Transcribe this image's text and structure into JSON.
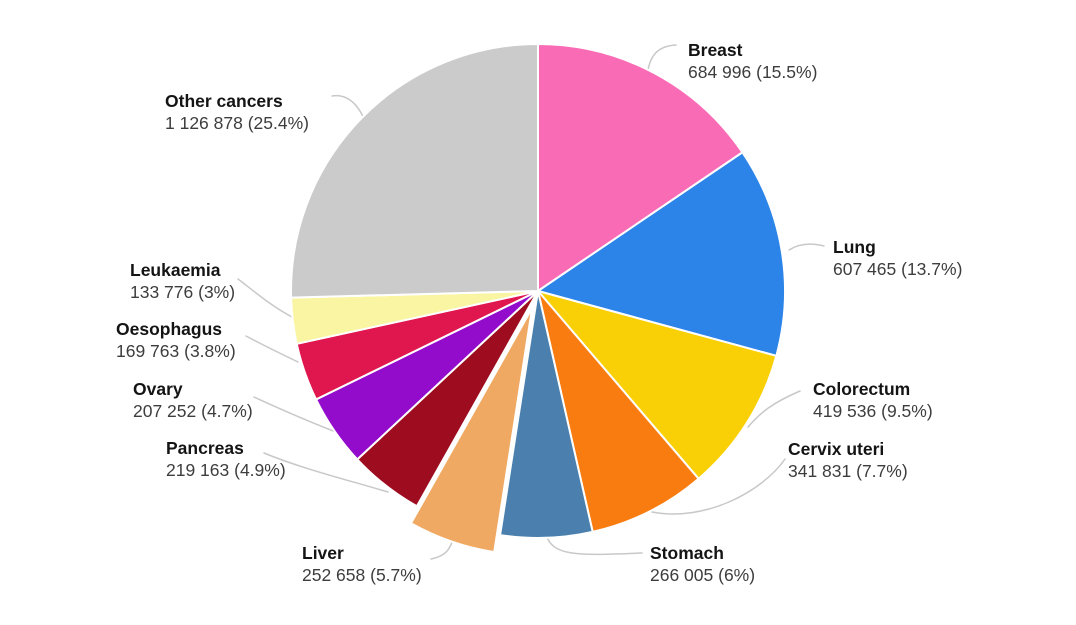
{
  "chart_data": {
    "type": "pie",
    "title": "",
    "direction": "clockwise",
    "start_angle_deg": 0,
    "stroke_color": "#FFFFFF",
    "leader_line_color": "#C8C8C8",
    "background": "#FFFFFF",
    "text_colors": {
      "label": "#141414",
      "value": "#3D3D3D"
    },
    "slices": [
      {
        "label": "Breast",
        "value": 684996,
        "value_text": "684 996",
        "pct": 15.5,
        "display": "684 996 (15.5%)",
        "color": "#FA6BB5",
        "exploded": false
      },
      {
        "label": "Lung",
        "value": 607465,
        "value_text": "607 465",
        "pct": 13.7,
        "display": "607 465 (13.7%)",
        "color": "#2C84E8",
        "exploded": false
      },
      {
        "label": "Colorectum",
        "value": 419536,
        "value_text": "419 536",
        "pct": 9.5,
        "display": "419 536 (9.5%)",
        "color": "#F9D005",
        "exploded": false
      },
      {
        "label": "Cervix uteri",
        "value": 341831,
        "value_text": "341 831",
        "pct": 7.7,
        "display": "341 831 (7.7%)",
        "color": "#F97C10",
        "exploded": false
      },
      {
        "label": "Stomach",
        "value": 266005,
        "value_text": "266 005",
        "pct": 6.0,
        "display": "266 005 (6%)",
        "color": "#4B80AE",
        "exploded": false
      },
      {
        "label": "Liver",
        "value": 252658,
        "value_text": "252 658",
        "pct": 5.7,
        "display": "252 658 (5.7%)",
        "color": "#F0A962",
        "exploded": true
      },
      {
        "label": "Pancreas",
        "value": 219163,
        "value_text": "219 163",
        "pct": 4.9,
        "display": "219 163 (4.9%)",
        "color": "#9E0C1F",
        "exploded": false
      },
      {
        "label": "Ovary",
        "value": 207252,
        "value_text": "207 252",
        "pct": 4.7,
        "display": "207 252 (4.7%)",
        "color": "#930BCB",
        "exploded": false
      },
      {
        "label": "Oesophagus",
        "value": 169763,
        "value_text": "169 763",
        "pct": 3.8,
        "display": "169 763 (3.8%)",
        "color": "#E0164E",
        "exploded": false
      },
      {
        "label": "Leukaemia",
        "value": 133776,
        "value_text": "133 776",
        "pct": 3.0,
        "display": "133 776 (3%)",
        "color": "#FAF5A3",
        "exploded": false
      },
      {
        "label": "Other cancers",
        "value": 1126878,
        "value_text": "1 126 878",
        "pct": 25.4,
        "display": "1 126 878 (25.4%)",
        "color": "#CBCBCB",
        "exploded": false
      }
    ]
  }
}
